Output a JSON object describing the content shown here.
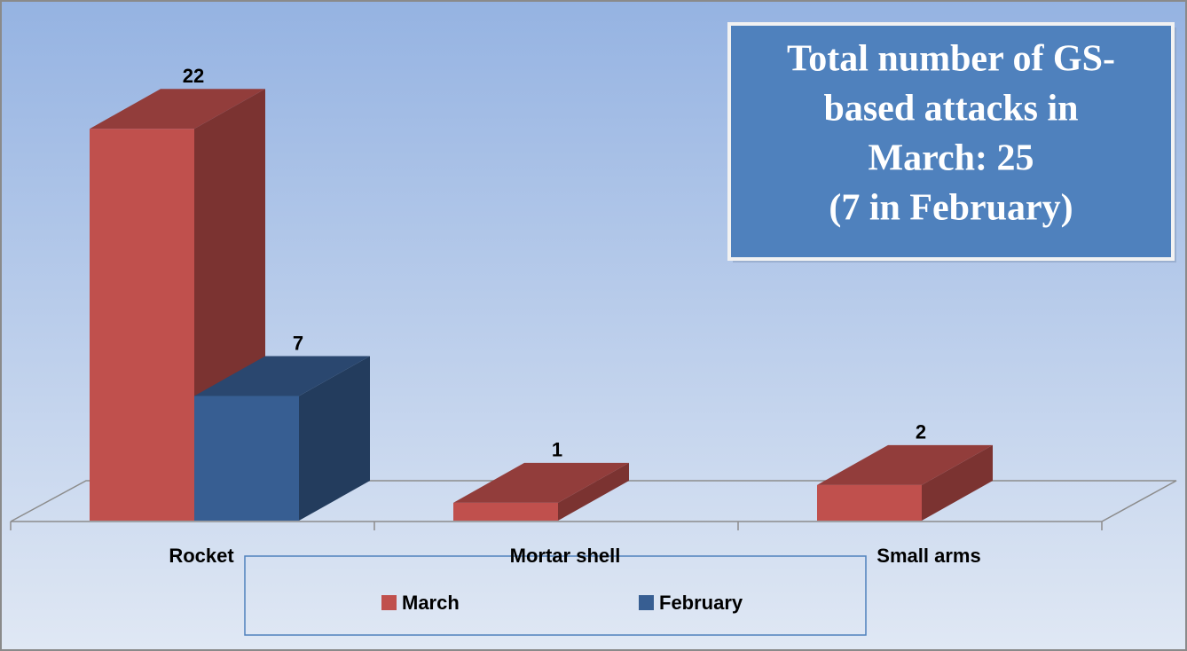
{
  "chart_data": {
    "type": "bar3d",
    "annotation": [
      "Total number of GS-",
      "based attacks in",
      "March: 25",
      "(7 in February)"
    ],
    "categories": [
      "Rocket",
      "Mortar shell",
      "Small arms"
    ],
    "series": [
      {
        "name": "March",
        "color": "#c0504d",
        "values": [
          22,
          1,
          2
        ]
      },
      {
        "name": "February",
        "color": "#375e92",
        "values": [
          7,
          null,
          null
        ]
      }
    ],
    "ylim": [
      0,
      25
    ]
  }
}
